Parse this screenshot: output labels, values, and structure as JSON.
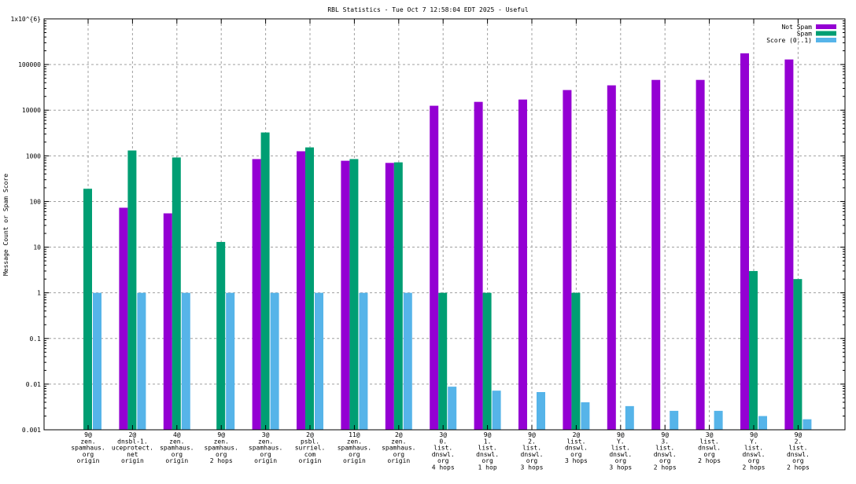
{
  "chart_data": {
    "type": "bar",
    "title": "RBL Statistics - Tue Oct  7 12:58:04 EDT 2025 - Useful",
    "ylabel": "Message Count or Spam Score",
    "xlabel": "",
    "yscale": "log",
    "ylim": [
      0.001,
      1000000
    ],
    "yticks": [
      "0.001",
      "0.01",
      "0.1",
      "1",
      "10",
      "100",
      "1000",
      "10000",
      "100000",
      "1x10^{6}"
    ],
    "grid": true,
    "legend_position": "top-right",
    "categories": [
      [
        "9@",
        "zen.",
        "spamhaus.",
        "org",
        "origin"
      ],
      [
        "2@",
        "dnsbl-1.",
        "uceprotect.",
        "net",
        "origin"
      ],
      [
        "4@",
        "zen.",
        "spamhaus.",
        "org",
        "origin"
      ],
      [
        "9@",
        "zen.",
        "spamhaus.",
        "org",
        "2 hops"
      ],
      [
        "3@",
        "zen.",
        "spamhaus.",
        "org",
        "origin"
      ],
      [
        "2@",
        "psbl.",
        "surriel.",
        "com",
        "origin"
      ],
      [
        "11@",
        "zen.",
        "spamhaus.",
        "org",
        "origin"
      ],
      [
        "2@",
        "zen.",
        "spamhaus.",
        "org",
        "origin"
      ],
      [
        "3@",
        "0.",
        "list.",
        "dnswl.",
        "org",
        "4 hops"
      ],
      [
        "9@",
        "1.",
        "list.",
        "dnswl.",
        "org",
        "1 hop"
      ],
      [
        "9@",
        "2.",
        "list.",
        "dnswl.",
        "org",
        "3 hops"
      ],
      [
        "2@",
        "list.",
        "dnswl.",
        "org",
        "3 hops"
      ],
      [
        "9@",
        "Y.",
        "list.",
        "dnswl.",
        "org",
        "3 hops"
      ],
      [
        "9@",
        "3.",
        "list.",
        "dnswl.",
        "org",
        "2 hops"
      ],
      [
        "3@",
        "list.",
        "dnswl.",
        "org",
        "2 hops"
      ],
      [
        "9@",
        "Y.",
        "list.",
        "dnswl.",
        "org",
        "2 hops"
      ],
      [
        "9@",
        "2.",
        "list.",
        "dnswl.",
        "org",
        "2 hops"
      ]
    ],
    "series": [
      {
        "name": "Not Spam",
        "color": "#9400d3",
        "values": [
          null,
          73,
          55,
          null,
          850,
          1260,
          780,
          700,
          12500,
          15200,
          17100,
          27600,
          35000,
          46000,
          46000,
          176000,
          129000
        ]
      },
      {
        "name": "Spam",
        "color": "#009e73",
        "values": [
          190,
          1310,
          920,
          13,
          3250,
          1530,
          850,
          720,
          1,
          1,
          null,
          1,
          null,
          null,
          null,
          3,
          2
        ]
      },
      {
        "name": "Score (0..1)",
        "color": "#56b4e9",
        "values": [
          1,
          1,
          1,
          1,
          1,
          1,
          1,
          1,
          0.0088,
          0.0072,
          0.0067,
          0.004,
          0.0033,
          0.0026,
          0.0026,
          0.002,
          0.0017
        ]
      }
    ]
  }
}
